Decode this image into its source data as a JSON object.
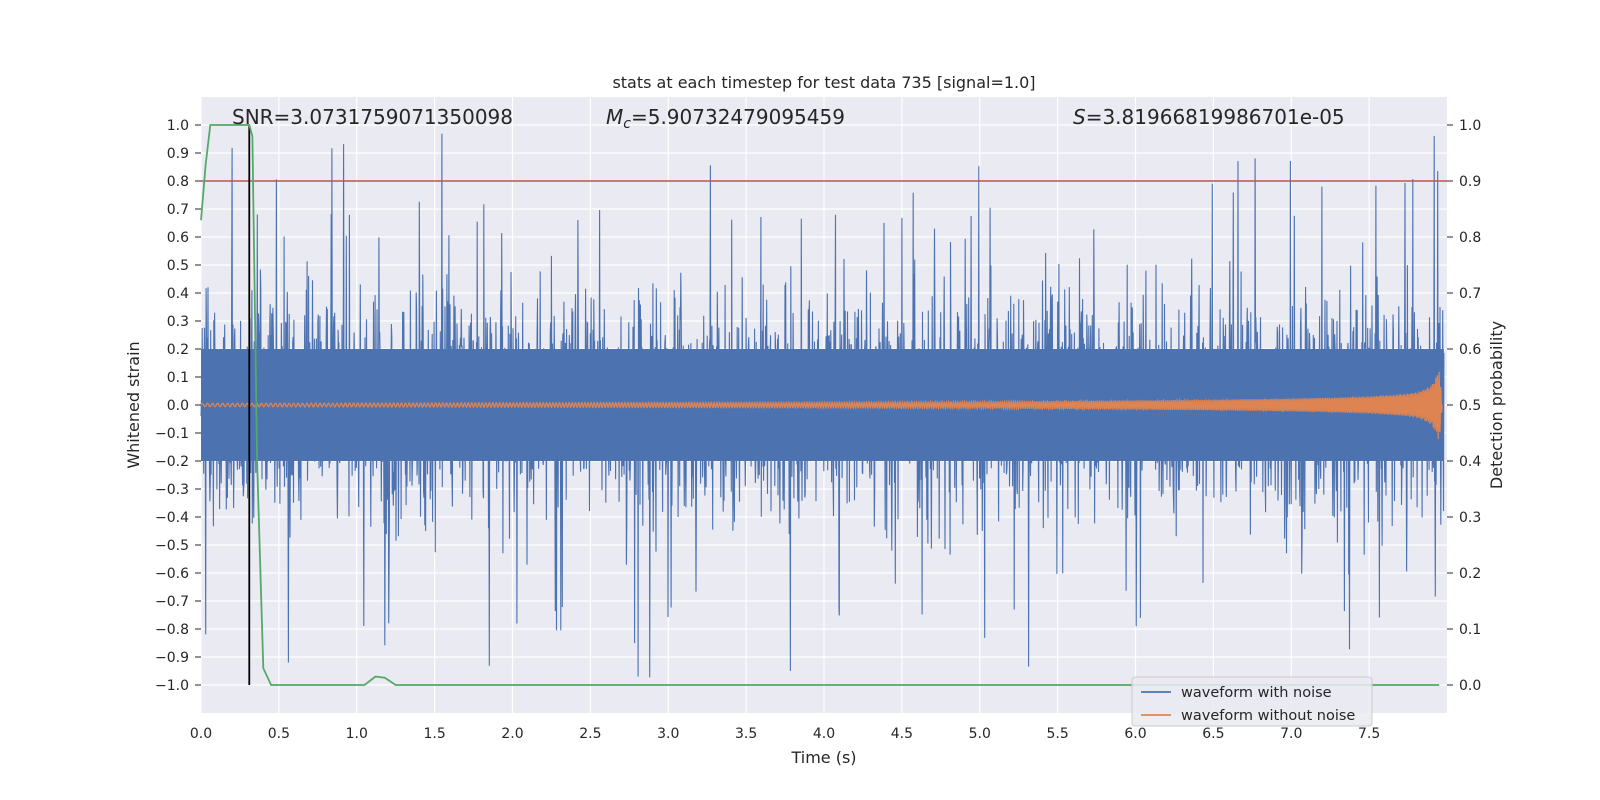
{
  "chart_data": {
    "type": "line",
    "title": "stats at each timestep for test data 735 [signal=1.0]",
    "xlabel": "Time (s)",
    "ylabel": "Whitened strain",
    "ylabel_right": "Detection probability",
    "xlim": [
      0.0,
      8.0
    ],
    "ylim": [
      -1.1,
      1.1
    ],
    "ylim_right": [
      -0.05,
      1.05
    ],
    "x_ticks": [
      0.0,
      0.5,
      1.0,
      1.5,
      2.0,
      2.5,
      3.0,
      3.5,
      4.0,
      4.5,
      5.0,
      5.5,
      6.0,
      6.5,
      7.0,
      7.5
    ],
    "x_tick_labels": [
      "0.0",
      "0.5",
      "1.0",
      "1.5",
      "2.0",
      "2.5",
      "3.0",
      "3.5",
      "4.0",
      "4.5",
      "5.0",
      "5.5",
      "6.0",
      "6.5",
      "7.0",
      "7.5"
    ],
    "y_ticks": [
      1.0,
      0.9,
      0.8,
      0.7,
      0.6,
      0.5,
      0.4,
      0.3,
      0.2,
      0.1,
      0.0,
      -0.1,
      -0.2,
      -0.3,
      -0.4,
      -0.5,
      -0.6,
      -0.7,
      -0.8,
      -0.9,
      -1.0
    ],
    "y_tick_labels": [
      "1.0",
      "0.9",
      "0.8",
      "0.7",
      "0.6",
      "0.5",
      "0.4",
      "0.3",
      "0.2",
      "0.1",
      "0.0",
      "−0.1",
      "−0.2",
      "−0.3",
      "−0.4",
      "−0.5",
      "−0.6",
      "−0.7",
      "−0.8",
      "−0.9",
      "−1.0"
    ],
    "y_right_ticks": [
      1.0,
      0.9,
      0.8,
      0.7,
      0.6,
      0.5,
      0.4,
      0.3,
      0.2,
      0.1,
      0.0
    ],
    "y_right_tick_labels": [
      "1.0",
      "0.9",
      "0.8",
      "0.7",
      "0.6",
      "0.5",
      "0.4",
      "0.3",
      "0.2",
      "0.1",
      "0.0"
    ],
    "annotations": {
      "snr": "SNR=3.0731759071350098",
      "mc_symbol": "M",
      "mc_sub": "c",
      "mc_value": "=5.90732479095459",
      "s_symbol": "S",
      "s_value": "=3.81966819986701e-05"
    },
    "series": [
      {
        "name": "waveform with noise",
        "color": "#4c72b0",
        "description": "dense whitened noisy strain, mostly within ±0.5 with spikes to ±1.0"
      },
      {
        "name": "waveform without noise",
        "color": "#dd8452",
        "description": "chirp amplitude envelope growing toward t≈7.95 s",
        "envelope_x": [
          0.0,
          1.0,
          2.0,
          3.0,
          4.0,
          5.0,
          6.0,
          6.5,
          7.0,
          7.3,
          7.5,
          7.7,
          7.8,
          7.85,
          7.9,
          7.93,
          7.95,
          7.97
        ],
        "envelope_amp": [
          0.006,
          0.007,
          0.008,
          0.009,
          0.01,
          0.012,
          0.016,
          0.019,
          0.023,
          0.027,
          0.031,
          0.038,
          0.045,
          0.055,
          0.07,
          0.1,
          0.13,
          0.0
        ]
      },
      {
        "name": "detection probability",
        "color": "#55a868",
        "axis": "right",
        "x": [
          0.0,
          0.03,
          0.06,
          0.1,
          0.15,
          0.2,
          0.25,
          0.28,
          0.31,
          0.33,
          0.36,
          0.4,
          0.45,
          1.0,
          1.05,
          1.12,
          1.18,
          1.25,
          1.3,
          7.95
        ],
        "y": [
          0.83,
          0.93,
          1.0,
          1.0,
          1.0,
          1.0,
          1.0,
          1.0,
          1.0,
          0.98,
          0.4,
          0.03,
          0.0,
          0.0,
          0.0,
          0.015,
          0.013,
          0.0,
          0.0,
          0.0
        ]
      }
    ],
    "threshold_line": {
      "value_right_axis": 0.9,
      "color": "#c44e52"
    },
    "event_marker": {
      "x": 0.31,
      "y_range": [
        -1.0,
        1.0
      ],
      "color": "#000000"
    },
    "legend": {
      "position": "bottom-right",
      "entries": [
        "waveform with noise",
        "waveform without noise"
      ]
    }
  }
}
